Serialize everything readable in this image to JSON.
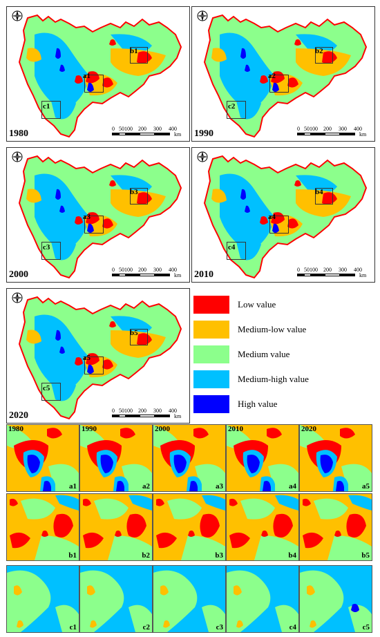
{
  "colors": {
    "low": "#ff0000",
    "medium_low": "#ffc000",
    "medium": "#8cff8c",
    "medium_high": "#00c0ff",
    "high": "#0000ff"
  },
  "maps": [
    {
      "year": "1980",
      "insets": [
        "a1",
        "b1",
        "c1"
      ]
    },
    {
      "year": "1990",
      "insets": [
        "a2",
        "b2",
        "c2"
      ]
    },
    {
      "year": "2000",
      "insets": [
        "a3",
        "b3",
        "c3"
      ]
    },
    {
      "year": "2010",
      "insets": [
        "a4",
        "b4",
        "c4"
      ]
    },
    {
      "year": "2020",
      "insets": [
        "a5",
        "b5",
        "c5"
      ]
    }
  ],
  "scale": {
    "ticks": [
      "0",
      "50",
      "100",
      "200",
      "300",
      "400"
    ],
    "unit": "km"
  },
  "compass_icon": "north-arrow-compass-icon",
  "legend": [
    {
      "key": "low",
      "label": "Low value"
    },
    {
      "key": "medium_low",
      "label": "Medium-low value"
    },
    {
      "key": "medium",
      "label": "Medium value"
    },
    {
      "key": "medium_high",
      "label": "Medium-high value"
    },
    {
      "key": "high",
      "label": "High value"
    }
  ],
  "detail_grid": {
    "years": [
      "1980",
      "1990",
      "2000",
      "2010",
      "2020"
    ],
    "rows": [
      {
        "region": "a",
        "codes": [
          "a1",
          "a2",
          "a3",
          "a4",
          "a5"
        ]
      },
      {
        "region": "b",
        "codes": [
          "b1",
          "b2",
          "b3",
          "b4",
          "b5"
        ]
      },
      {
        "region": "c",
        "codes": [
          "c1",
          "c2",
          "c3",
          "c4",
          "c5"
        ]
      }
    ]
  }
}
